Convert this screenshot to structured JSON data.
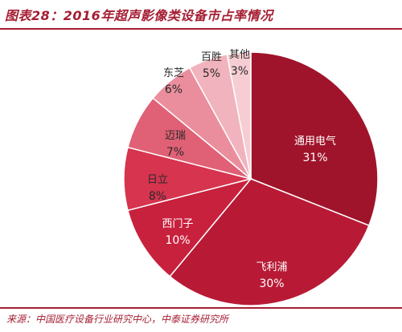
{
  "title": "图表28：2016年超声影像类设备市占率情况",
  "source": "来源：中国医疗设备行业研究中心，中泰证券研究所",
  "chart_data": {
    "type": "pie",
    "title": "图表28：2016年超声影像类设备市占率情况",
    "start_position": "12 o'clock",
    "direction": "clockwise",
    "slices": [
      {
        "name": "通用电气",
        "value": 31,
        "label": "31%",
        "color": "#a0142b",
        "label_color": "#ffffff"
      },
      {
        "name": "飞利浦",
        "value": 30,
        "label": "30%",
        "color": "#b81a35",
        "label_color": "#ffffff"
      },
      {
        "name": "西门子",
        "value": 10,
        "label": "10%",
        "color": "#c8213d",
        "label_color": "#ffffff"
      },
      {
        "name": "日立",
        "value": 8,
        "label": "8%",
        "color": "#d6344f",
        "label_color": "#2a2a2a"
      },
      {
        "name": "迈瑞",
        "value": 7,
        "label": "7%",
        "color": "#e06075",
        "label_color": "#2a2a2a"
      },
      {
        "name": "东芝",
        "value": 6,
        "label": "6%",
        "color": "#ea8e9d",
        "label_color": "#2a2a2a"
      },
      {
        "name": "百胜",
        "value": 5,
        "label": "5%",
        "color": "#f1b3bd",
        "label_color": "#2a2a2a"
      },
      {
        "name": "其他",
        "value": 3,
        "label": "3%",
        "color": "#f6cdd3",
        "label_color": "#2a2a2a"
      }
    ]
  }
}
